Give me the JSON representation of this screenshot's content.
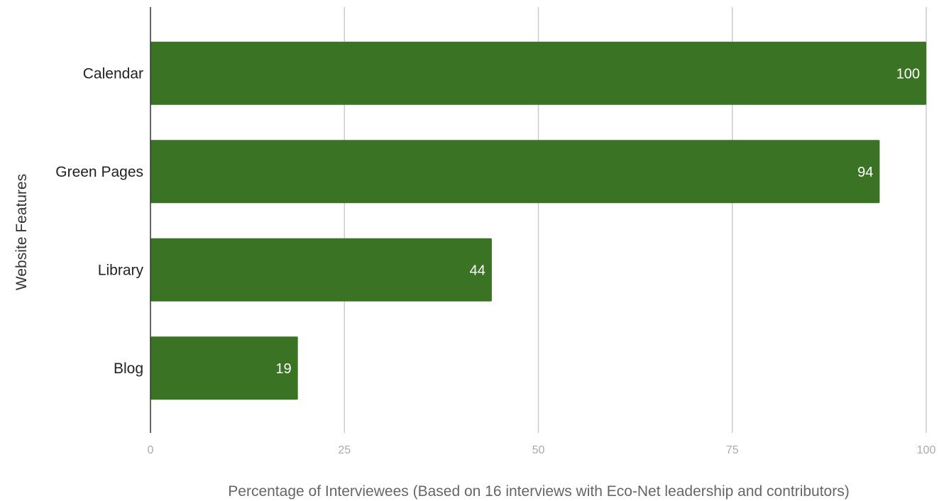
{
  "chart_data": {
    "type": "bar",
    "orientation": "horizontal",
    "title": "",
    "xlabel": "Percentage of Interviewees (Based on 16 interviews with Eco-Net leadership and contributors)",
    "ylabel": "Website Features",
    "categories": [
      "Calendar",
      "Green Pages",
      "Library",
      "Blog"
    ],
    "values": [
      100,
      94,
      44,
      19
    ],
    "value_labels": [
      "100",
      "94",
      "44",
      "19"
    ],
    "xlim": [
      0,
      100
    ],
    "x_ticks": [
      0,
      25,
      50,
      75,
      100
    ],
    "x_tick_labels": [
      "0",
      "25",
      "50",
      "75",
      "100"
    ],
    "grid": true,
    "legend": "none",
    "bar_color": "#3b7324"
  }
}
